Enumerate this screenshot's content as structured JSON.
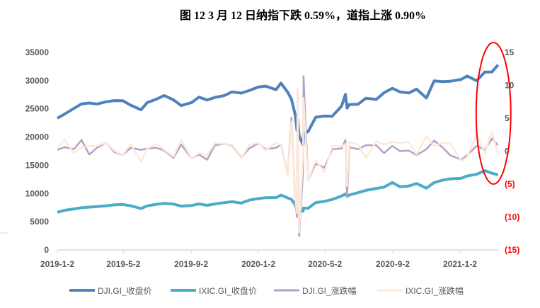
{
  "chart_data": {
    "type": "line",
    "title": "图 12   3 月 12 日纳指下跌 0.59%，道指上涨 0.90%",
    "x_ticks": [
      "2019-1-2",
      "2019-5-2",
      "2019-9-2",
      "2020-1-2",
      "2020-5-2",
      "2020-9-2",
      "2021-1-2"
    ],
    "x_tick_dates": [
      "2019-01-02",
      "2019-05-02",
      "2019-09-02",
      "2020-01-02",
      "2020-05-02",
      "2020-09-02",
      "2021-01-02"
    ],
    "x_range": [
      "2019-01-02",
      "2021-03-12"
    ],
    "y_left": {
      "ticks": [
        "0",
        "5000",
        "10000",
        "15000",
        "20000",
        "25000",
        "30000",
        "35000"
      ],
      "range": [
        0,
        35000
      ]
    },
    "y_right": {
      "ticks": [
        "(15)",
        "(10)",
        "(5)",
        "0",
        "5",
        "10",
        "15"
      ],
      "tick_values": [
        -15,
        -10,
        -5,
        0,
        5,
        10,
        15
      ],
      "range": [
        -15,
        15
      ],
      "negative_color": "#ff0000"
    },
    "grid": false,
    "legend_placement": "bottom",
    "annotation": {
      "shape": "ellipse",
      "color": "#ff0000",
      "highlight_range": [
        "2021-02-08",
        "2021-03-12"
      ]
    },
    "x": [
      "2019-01-02",
      "2019-01-15",
      "2019-02-01",
      "2019-02-15",
      "2019-03-01",
      "2019-03-15",
      "2019-04-01",
      "2019-04-15",
      "2019-05-01",
      "2019-05-15",
      "2019-06-03",
      "2019-06-14",
      "2019-07-01",
      "2019-07-15",
      "2019-08-01",
      "2019-08-15",
      "2019-09-03",
      "2019-09-16",
      "2019-10-01",
      "2019-10-15",
      "2019-11-01",
      "2019-11-15",
      "2019-12-02",
      "2019-12-16",
      "2020-01-02",
      "2020-01-15",
      "2020-02-03",
      "2020-02-12",
      "2020-02-24",
      "2020-03-02",
      "2020-03-09",
      "2020-03-12",
      "2020-03-13",
      "2020-03-16",
      "2020-03-23",
      "2020-03-24",
      "2020-04-01",
      "2020-04-15",
      "2020-05-01",
      "2020-05-15",
      "2020-06-01",
      "2020-06-08",
      "2020-06-11",
      "2020-06-15",
      "2020-07-01",
      "2020-07-15",
      "2020-08-03",
      "2020-08-17",
      "2020-09-01",
      "2020-09-15",
      "2020-10-01",
      "2020-10-15",
      "2020-11-02",
      "2020-11-16",
      "2020-12-01",
      "2020-12-15",
      "2021-01-04",
      "2021-01-15",
      "2021-02-01",
      "2021-02-16",
      "2021-03-01",
      "2021-03-12"
    ],
    "series": [
      {
        "name": "DJI.GI_收盘价",
        "axis": "left",
        "color": "#4f81bd",
        "values": [
          23346,
          24065,
          25064,
          25883,
          26026,
          25849,
          26258,
          26452,
          26430,
          25648,
          24820,
          26090,
          26717,
          27359,
          26583,
          25579,
          26118,
          27076,
          26573,
          27025,
          27347,
          28005,
          27783,
          28235,
          28869,
          29030,
          28400,
          29551,
          27961,
          26703,
          23851,
          21200,
          23185,
          20189,
          18592,
          20704,
          20943,
          23505,
          23724,
          23685,
          25475,
          27572,
          25128,
          25763,
          25813,
          26870,
          26665,
          27845,
          28645,
          27995,
          27817,
          28494,
          26925,
          29950,
          29824,
          29883,
          30224,
          30814,
          29983,
          31523,
          31535,
          32779
        ]
      },
      {
        "name": "IXIC.GI_收盘价",
        "axis": "left",
        "color": "#4bacc6",
        "values": [
          6665,
          7023,
          7263,
          7472,
          7595,
          7689,
          7829,
          7976,
          8049,
          7822,
          7333,
          7797,
          8091,
          8258,
          8111,
          7766,
          7874,
          8153,
          7909,
          8148,
          8386,
          8540,
          8309,
          8814,
          9092,
          9258,
          9273,
          9726,
          9221,
          8952,
          7950,
          7201,
          7875,
          6904,
          6860,
          7418,
          7360,
          8393,
          8605,
          8943,
          9552,
          9924,
          9492,
          9726,
          10154,
          10550,
          10903,
          11129,
          11939,
          11190,
          11326,
          11768,
          10957,
          11925,
          12355,
          12596,
          12698,
          13112,
          13403,
          14047,
          13589,
          13320
        ]
      },
      {
        "name": "DJI.GI_涨跌幅",
        "axis": "right",
        "color": "#b3a2c7",
        "values": [
          0.2,
          0.6,
          0.3,
          1.7,
          -0.5,
          0.5,
          1.3,
          -0.1,
          -0.6,
          0.5,
          0.2,
          0.4,
          0.5,
          0.1,
          -1.0,
          1.0,
          -1.1,
          -0.5,
          -1.3,
          0.9,
          1.1,
          0.8,
          -1.0,
          0.4,
          1.2,
          0.3,
          0.5,
          1.0,
          -3.6,
          5.1,
          -7.8,
          -10.0,
          9.4,
          -12.9,
          -3.0,
          11.4,
          -4.4,
          -1.9,
          -2.5,
          0.3,
          0.4,
          1.7,
          -6.9,
          0.6,
          0.3,
          0.9,
          0.9,
          -0.3,
          0.8,
          0.0,
          0.1,
          -0.6,
          0.3,
          1.6,
          0.6,
          -0.6,
          -1.3,
          -0.6,
          0.8,
          0.2,
          1.9,
          0.9
        ]
      },
      {
        "name": "IXIC.GI_涨跌幅",
        "axis": "right",
        "color": "#fde9d9",
        "values": [
          0.5,
          1.7,
          -0.3,
          0.6,
          0.8,
          0.8,
          1.3,
          0.1,
          -0.6,
          1.1,
          -1.6,
          0.4,
          1.1,
          0.2,
          -0.8,
          1.7,
          -1.1,
          -0.3,
          -0.6,
          1.2,
          1.1,
          0.7,
          -1.1,
          0.9,
          1.3,
          0.1,
          1.3,
          0.9,
          -3.7,
          4.5,
          -7.3,
          -9.4,
          9.4,
          -12.3,
          -0.3,
          8.1,
          -4.4,
          -1.4,
          -3.2,
          0.8,
          0.7,
          1.1,
          -5.3,
          1.4,
          1.0,
          -1.0,
          1.5,
          1.0,
          1.4,
          1.2,
          1.4,
          -0.5,
          2.3,
          0.8,
          1.3,
          1.2,
          -1.5,
          -0.9,
          2.6,
          -0.3,
          3.0,
          -0.6
        ]
      }
    ]
  }
}
